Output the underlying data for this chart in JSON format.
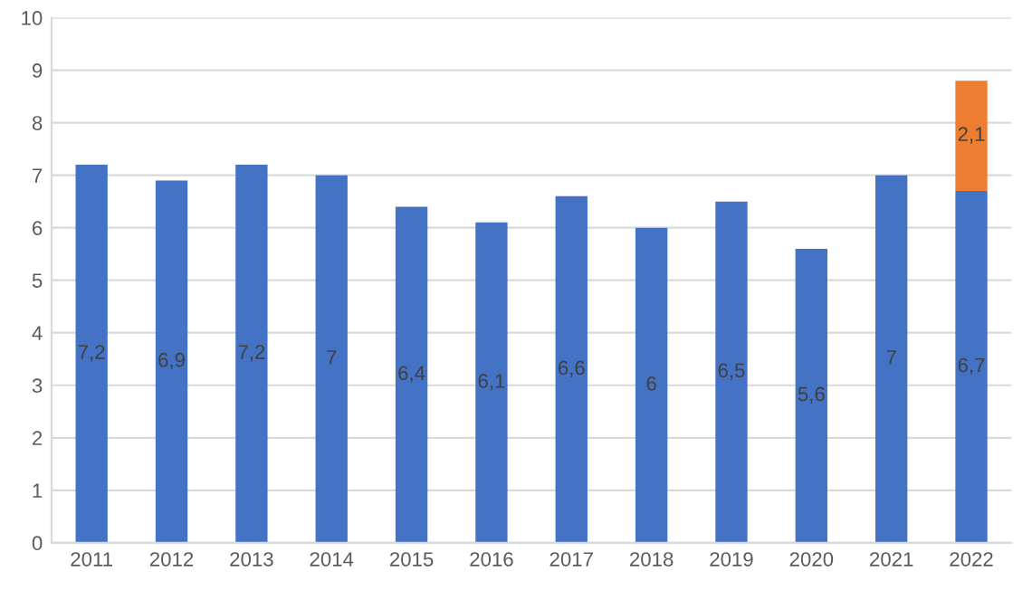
{
  "chart_data": {
    "type": "bar",
    "stacked": true,
    "categories": [
      "2011",
      "2012",
      "2013",
      "2014",
      "2015",
      "2016",
      "2017",
      "2018",
      "2019",
      "2020",
      "2021",
      "2022"
    ],
    "series": [
      {
        "color": "#4472c4",
        "values": [
          7.2,
          6.9,
          7.2,
          7,
          6.4,
          6.1,
          6.6,
          6,
          6.5,
          5.6,
          7,
          6.7
        ],
        "value_labels": [
          "7,2",
          "6,9",
          "7,2",
          "7",
          "6,4",
          "6,1",
          "6,6",
          "6",
          "6,5",
          "5,6",
          "7",
          "6,7"
        ]
      },
      {
        "color": "#ed7d31",
        "values": [
          null,
          null,
          null,
          null,
          null,
          null,
          null,
          null,
          null,
          null,
          null,
          2.1
        ],
        "value_labels": [
          null,
          null,
          null,
          null,
          null,
          null,
          null,
          null,
          null,
          null,
          null,
          "2,1"
        ]
      }
    ],
    "ylim": [
      0,
      10
    ],
    "yticks": [
      0,
      1,
      2,
      3,
      4,
      5,
      6,
      7,
      8,
      9,
      10
    ],
    "grid": "y"
  }
}
